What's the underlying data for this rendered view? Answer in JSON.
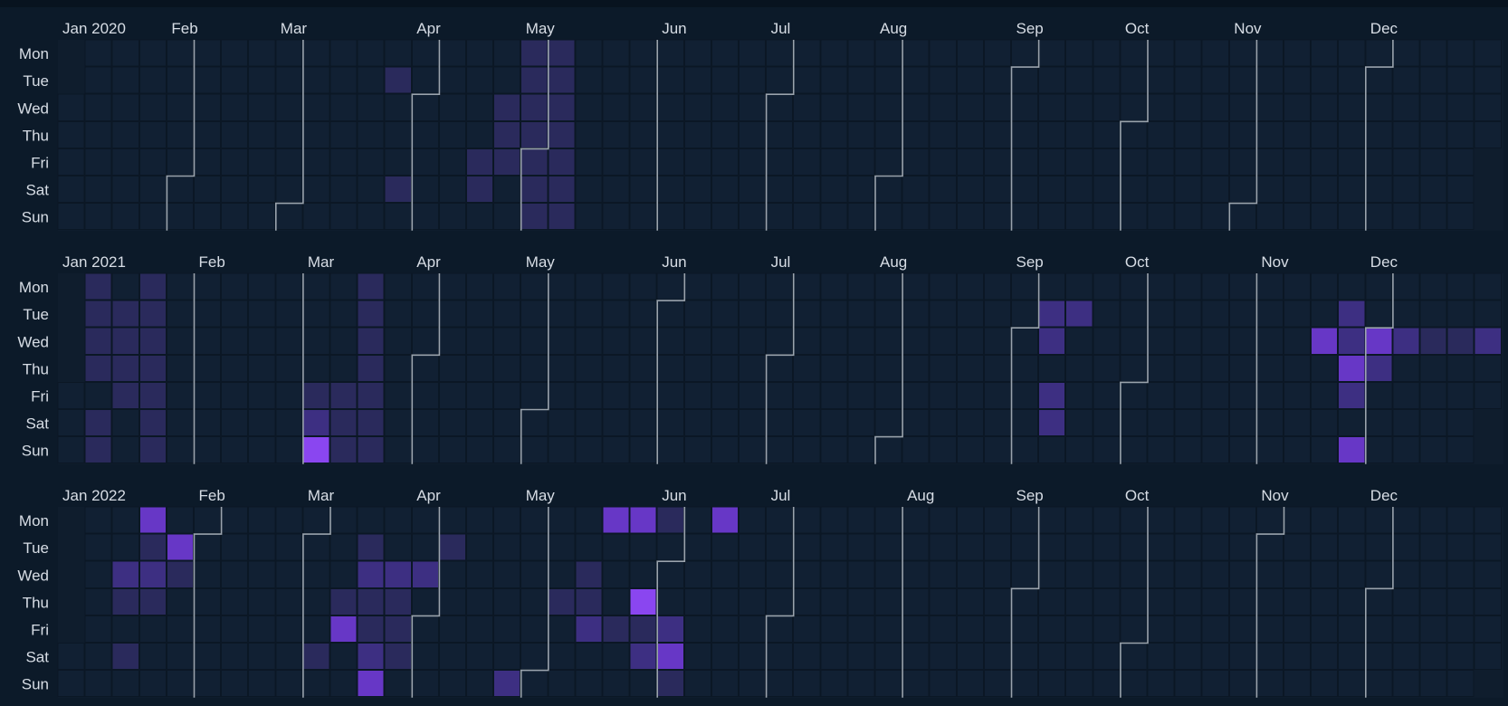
{
  "chart_data": {
    "type": "heatmap",
    "layout": "calendar",
    "title": "",
    "weekdays": [
      "Mon",
      "Tue",
      "Wed",
      "Thu",
      "Fri",
      "Sat",
      "Sun"
    ],
    "colors": {
      "empty": "#112033",
      "stroke": "#0b1725",
      "panel": "#0f1d2d",
      "boundary": "#9aa3ad",
      "scale": [
        "#1d2744",
        "#2a2a5c",
        "#3d2f82",
        "#6737c6",
        "#8a46f0"
      ]
    },
    "value_range": [
      0,
      4
    ],
    "years": [
      {
        "year": 2020,
        "month_labels": [
          "Jan 2020",
          "Feb",
          "Mar",
          "Apr",
          "May",
          "Jun",
          "Jul",
          "Aug",
          "Sep",
          "Oct",
          "Nov",
          "Dec"
        ],
        "entries": [
          [
            "2020-03-24",
            1
          ],
          [
            "2020-03-28",
            1
          ],
          [
            "2020-04-17",
            1
          ],
          [
            "2020-04-18",
            1
          ],
          [
            "2020-04-22",
            1
          ],
          [
            "2020-04-23",
            1
          ],
          [
            "2020-04-24",
            1
          ],
          [
            "2020-04-27",
            1
          ],
          [
            "2020-04-28",
            1
          ],
          [
            "2020-04-29",
            1
          ],
          [
            "2020-04-30",
            1
          ],
          [
            "2020-05-01",
            1
          ],
          [
            "2020-05-02",
            1
          ],
          [
            "2020-05-03",
            1
          ],
          [
            "2020-05-04",
            1
          ],
          [
            "2020-05-05",
            1
          ],
          [
            "2020-05-06",
            1
          ],
          [
            "2020-05-07",
            1
          ],
          [
            "2020-05-08",
            1
          ],
          [
            "2020-05-09",
            1
          ],
          [
            "2020-05-10",
            1
          ]
        ]
      },
      {
        "year": 2021,
        "month_labels": [
          "Jan 2021",
          "Feb",
          "Mar",
          "Apr",
          "May",
          "Jun",
          "Jul",
          "Aug",
          "Sep",
          "Oct",
          "Nov",
          "Dec"
        ],
        "entries": [
          [
            "2021-01-04",
            1
          ],
          [
            "2021-01-05",
            1
          ],
          [
            "2021-01-06",
            1
          ],
          [
            "2021-01-07",
            1
          ],
          [
            "2021-01-09",
            1
          ],
          [
            "2021-01-10",
            1
          ],
          [
            "2021-01-12",
            1
          ],
          [
            "2021-01-13",
            1
          ],
          [
            "2021-01-14",
            1
          ],
          [
            "2021-01-15",
            1
          ],
          [
            "2021-01-18",
            1
          ],
          [
            "2021-01-19",
            1
          ],
          [
            "2021-01-20",
            1
          ],
          [
            "2021-01-21",
            1
          ],
          [
            "2021-01-22",
            1
          ],
          [
            "2021-01-23",
            1
          ],
          [
            "2021-01-24",
            1
          ],
          [
            "2021-03-05",
            1
          ],
          [
            "2021-03-06",
            2
          ],
          [
            "2021-03-07",
            4
          ],
          [
            "2021-03-12",
            1
          ],
          [
            "2021-03-13",
            1
          ],
          [
            "2021-03-14",
            1
          ],
          [
            "2021-03-15",
            1
          ],
          [
            "2021-03-16",
            1
          ],
          [
            "2021-03-17",
            1
          ],
          [
            "2021-03-18",
            1
          ],
          [
            "2021-03-19",
            1
          ],
          [
            "2021-03-20",
            1
          ],
          [
            "2021-03-21",
            1
          ],
          [
            "2021-09-07",
            2
          ],
          [
            "2021-09-08",
            2
          ],
          [
            "2021-09-10",
            2
          ],
          [
            "2021-09-11",
            2
          ],
          [
            "2021-09-14",
            2
          ],
          [
            "2021-11-17",
            3
          ],
          [
            "2021-11-23",
            2
          ],
          [
            "2021-11-24",
            2
          ],
          [
            "2021-11-25",
            3
          ],
          [
            "2021-11-26",
            2
          ],
          [
            "2021-11-28",
            3
          ],
          [
            "2021-12-01",
            3
          ],
          [
            "2021-12-02",
            2
          ],
          [
            "2021-12-08",
            2
          ],
          [
            "2021-12-15",
            1
          ],
          [
            "2021-12-22",
            1
          ],
          [
            "2021-12-29",
            2
          ]
        ]
      },
      {
        "year": 2022,
        "month_labels": [
          "Jan 2022",
          "Feb",
          "Mar",
          "Apr",
          "May",
          "Jun",
          "Jul",
          "Aug",
          "Sep",
          "Oct",
          "Nov",
          "Dec"
        ],
        "entries": [
          [
            "2022-01-12",
            2
          ],
          [
            "2022-01-13",
            1
          ],
          [
            "2022-01-15",
            1
          ],
          [
            "2022-01-17",
            3
          ],
          [
            "2022-01-18",
            1
          ],
          [
            "2022-01-19",
            2
          ],
          [
            "2022-01-20",
            1
          ],
          [
            "2022-01-25",
            3
          ],
          [
            "2022-01-26",
            1
          ],
          [
            "2022-03-05",
            1
          ],
          [
            "2022-03-10",
            1
          ],
          [
            "2022-03-11",
            3
          ],
          [
            "2022-03-15",
            1
          ],
          [
            "2022-03-16",
            2
          ],
          [
            "2022-03-17",
            1
          ],
          [
            "2022-03-18",
            1
          ],
          [
            "2022-03-19",
            2
          ],
          [
            "2022-03-20",
            3
          ],
          [
            "2022-03-23",
            2
          ],
          [
            "2022-03-24",
            1
          ],
          [
            "2022-03-25",
            1
          ],
          [
            "2022-03-26",
            1
          ],
          [
            "2022-03-30",
            2
          ],
          [
            "2022-04-05",
            1
          ],
          [
            "2022-04-24",
            2
          ],
          [
            "2022-05-05",
            1
          ],
          [
            "2022-05-11",
            1
          ],
          [
            "2022-05-12",
            1
          ],
          [
            "2022-05-13",
            2
          ],
          [
            "2022-05-16",
            3
          ],
          [
            "2022-05-20",
            1
          ],
          [
            "2022-05-23",
            3
          ],
          [
            "2022-05-26",
            4
          ],
          [
            "2022-05-27",
            1
          ],
          [
            "2022-05-28",
            2
          ],
          [
            "2022-05-30",
            1
          ],
          [
            "2022-06-03",
            2
          ],
          [
            "2022-06-04",
            3
          ],
          [
            "2022-06-05",
            1
          ],
          [
            "2022-06-13",
            3
          ]
        ]
      }
    ]
  }
}
